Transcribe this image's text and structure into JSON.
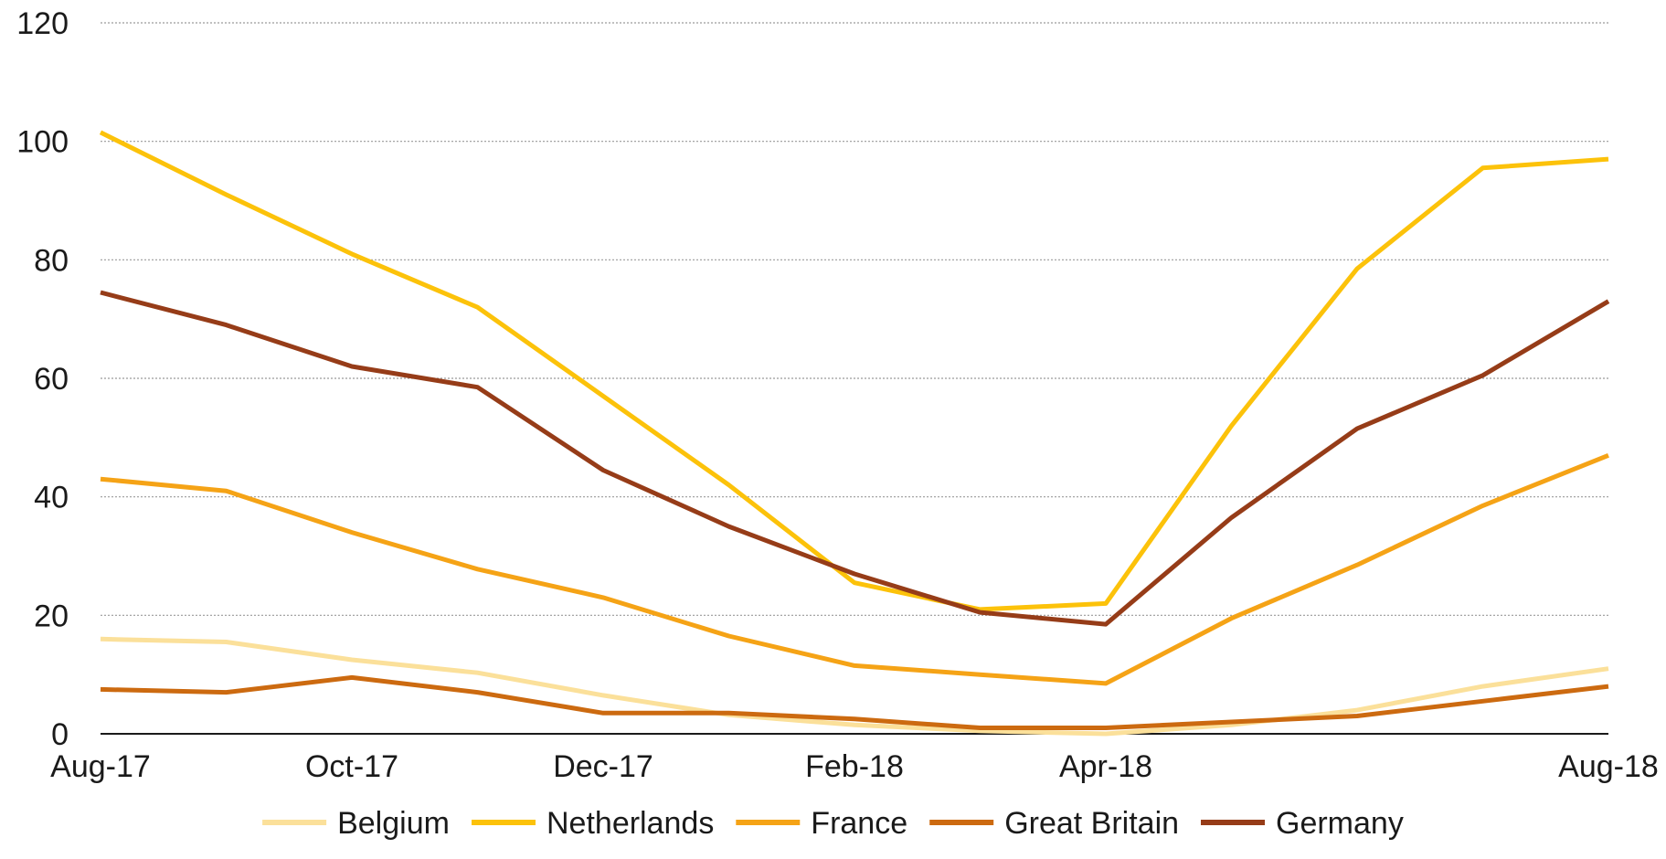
{
  "chart_data": {
    "type": "line",
    "x": [
      "Aug-17",
      "Sep-17",
      "Oct-17",
      "Nov-17",
      "Dec-17",
      "Jan-18",
      "Feb-18",
      "Mar-18",
      "Apr-18",
      "May-18",
      "Jun-18",
      "Jul-18",
      "Aug-18"
    ],
    "x_tick_labels": [
      "Aug-17",
      "Oct-17",
      "Dec-17",
      "Feb-18",
      "Apr-18",
      "Aug-18"
    ],
    "ylim": [
      0,
      120
    ],
    "y_ticks": [
      0,
      20,
      40,
      60,
      80,
      100,
      120
    ],
    "grid": true,
    "legend_position": "bottom",
    "series": [
      {
        "name": "Belgium",
        "color": "#fbe09a",
        "values": [
          16,
          15.5,
          12.5,
          10.3,
          6.5,
          3.2,
          1.5,
          0.5,
          0,
          1.5,
          4,
          8,
          11
        ]
      },
      {
        "name": "Netherlands",
        "color": "#fcc20a",
        "values": [
          101.5,
          91,
          81,
          72,
          57,
          42,
          25.5,
          21,
          22,
          52,
          78.5,
          95.5,
          97
        ]
      },
      {
        "name": "France",
        "color": "#f5a316",
        "values": [
          43,
          41,
          34,
          27.8,
          23,
          16.5,
          11.5,
          10,
          8.5,
          19.5,
          28.5,
          38.5,
          47
        ]
      },
      {
        "name": "Great Britain",
        "color": "#cc6a10",
        "values": [
          7.5,
          7,
          9.5,
          7,
          3.5,
          3.5,
          2.5,
          1,
          1,
          2,
          3,
          5.5,
          8
        ]
      },
      {
        "name": "Germany",
        "color": "#963c18",
        "values": [
          74.5,
          69,
          62,
          58.5,
          44.5,
          35,
          27,
          20.5,
          18.5,
          36.5,
          51.5,
          60.5,
          73
        ]
      }
    ]
  }
}
